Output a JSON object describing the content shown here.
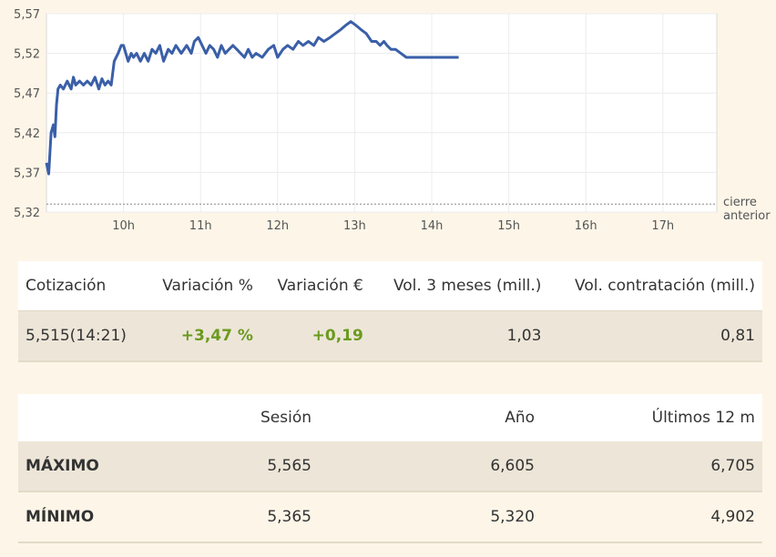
{
  "chart_data": {
    "type": "line",
    "ylim": [
      5.32,
      5.57
    ],
    "xlim": [
      9,
      17.7
    ],
    "yticks": [
      "5,57",
      "5,52",
      "5,47",
      "5,42",
      "5,37",
      "5,32"
    ],
    "ytick_values": [
      5.57,
      5.52,
      5.47,
      5.42,
      5.37,
      5.32
    ],
    "xticks": [
      "10h",
      "11h",
      "12h",
      "13h",
      "14h",
      "15h",
      "16h",
      "17h"
    ],
    "xtick_values": [
      10,
      11,
      12,
      13,
      14,
      15,
      16,
      17
    ],
    "previous_close": 5.33,
    "previous_close_label": [
      "cierre",
      "anterior"
    ],
    "line_color": "#3a5fa8",
    "grid": true,
    "series": [
      {
        "x": [
          9.0,
          9.03,
          9.06,
          9.09,
          9.11,
          9.13,
          9.15,
          9.18,
          9.22,
          9.27,
          9.32,
          9.35,
          9.38,
          9.43,
          9.48,
          9.53,
          9.58,
          9.63,
          9.68,
          9.72,
          9.76,
          9.8,
          9.84,
          9.88,
          9.93,
          9.97,
          10.0,
          10.03,
          10.06,
          10.1,
          10.13,
          10.17,
          10.22,
          10.27,
          10.32,
          10.37,
          10.42,
          10.47,
          10.52,
          10.58,
          10.63,
          10.68,
          10.75,
          10.82,
          10.88,
          10.92,
          10.97,
          11.02,
          11.07,
          11.12,
          11.17,
          11.22,
          11.27,
          11.32,
          11.37,
          11.42,
          11.47,
          11.52,
          11.57,
          11.62,
          11.67,
          11.72,
          11.8,
          11.88,
          11.95,
          12.0,
          12.07,
          12.13,
          12.2,
          12.27,
          12.33,
          12.4,
          12.47,
          12.53,
          12.6,
          12.68,
          12.75,
          12.82,
          12.88,
          12.95,
          13.02,
          13.08,
          13.15,
          13.22,
          13.28,
          13.33,
          13.38,
          13.42,
          13.47,
          13.53,
          13.6,
          13.67,
          13.75,
          13.83,
          13.92,
          14.0,
          14.08,
          14.15,
          14.22,
          14.28,
          14.35
        ],
        "y": [
          5.382,
          5.368,
          5.42,
          5.43,
          5.415,
          5.455,
          5.475,
          5.48,
          5.475,
          5.485,
          5.475,
          5.49,
          5.48,
          5.485,
          5.48,
          5.485,
          5.48,
          5.49,
          5.475,
          5.488,
          5.48,
          5.485,
          5.48,
          5.51,
          5.52,
          5.53,
          5.53,
          5.52,
          5.51,
          5.52,
          5.515,
          5.52,
          5.51,
          5.52,
          5.51,
          5.525,
          5.52,
          5.53,
          5.51,
          5.525,
          5.52,
          5.53,
          5.52,
          5.53,
          5.52,
          5.535,
          5.54,
          5.53,
          5.52,
          5.53,
          5.525,
          5.515,
          5.53,
          5.52,
          5.525,
          5.53,
          5.525,
          5.52,
          5.515,
          5.525,
          5.515,
          5.52,
          5.515,
          5.525,
          5.53,
          5.515,
          5.525,
          5.53,
          5.525,
          5.535,
          5.53,
          5.535,
          5.53,
          5.54,
          5.535,
          5.54,
          5.545,
          5.55,
          5.555,
          5.56,
          5.555,
          5.55,
          5.545,
          5.535,
          5.535,
          5.53,
          5.535,
          5.53,
          5.525,
          5.525,
          5.52,
          5.515,
          5.515,
          5.515,
          5.515,
          5.515,
          5.515,
          5.515,
          5.515,
          5.515,
          5.515
        ]
      }
    ]
  },
  "quote_table": {
    "headers": {
      "price": "Cotización",
      "var_pct": "Variación %",
      "var_eur": "Variación €",
      "vol3m": "Vol. 3 meses (mill.)",
      "volcon": "Vol. contratación (mill.)"
    },
    "row": {
      "price": "5,515(14:21)",
      "var_pct": "+3,47 %",
      "var_eur": "+0,19",
      "vol3m": "1,03",
      "volcon": "0,81"
    }
  },
  "range_table": {
    "headers": {
      "label": "",
      "session": "Sesión",
      "year": "Año",
      "last12": "Últimos 12 m"
    },
    "rows": [
      {
        "label": "MÁXIMO",
        "session": "5,565",
        "year": "6,605",
        "last12": "6,705"
      },
      {
        "label": "MÍNIMO",
        "session": "5,365",
        "year": "5,320",
        "last12": "4,902"
      }
    ]
  }
}
